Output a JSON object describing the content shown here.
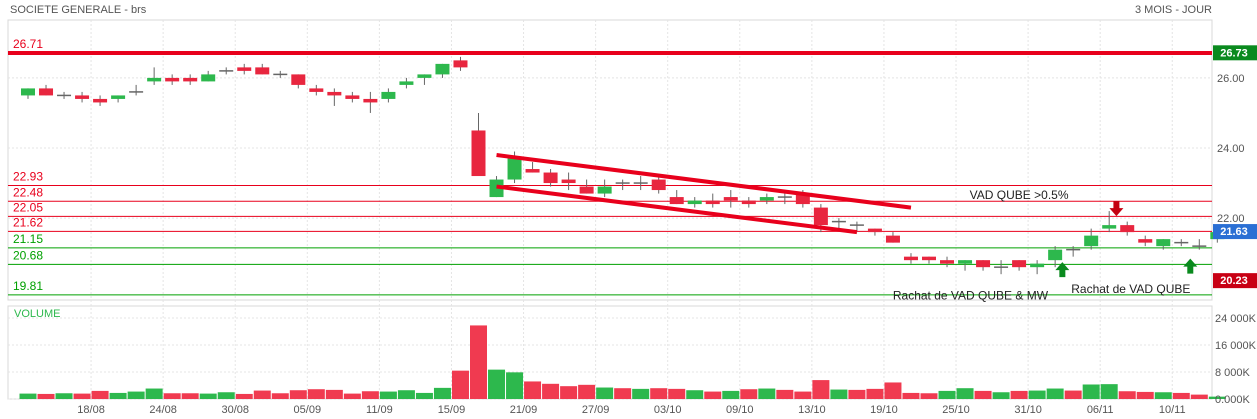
{
  "header": {
    "title": "SOCIETE GENERALE - brs",
    "period": "3 MOIS - JOUR"
  },
  "colors": {
    "up": "#2db84d",
    "down": "#e8263f",
    "resistance": "#e8001c",
    "support": "#00a000",
    "grid": "#e4e4e4",
    "text": "#555555"
  },
  "chart_data": [
    {
      "type": "candlestick",
      "y_ticks": [
        "26.00",
        "24.00",
        "22.00"
      ],
      "ylim": [
        19.6,
        26.9
      ],
      "x_labels": [
        {
          "i": 3,
          "label": "18/08"
        },
        {
          "i": 7,
          "label": "24/08"
        },
        {
          "i": 11,
          "label": "30/08"
        },
        {
          "i": 15,
          "label": "05/09"
        },
        {
          "i": 19,
          "label": "11/09"
        },
        {
          "i": 23,
          "label": "15/09"
        },
        {
          "i": 27,
          "label": "21/09"
        },
        {
          "i": 31,
          "label": "27/09"
        },
        {
          "i": 35,
          "label": "03/10"
        },
        {
          "i": 39,
          "label": "09/10"
        },
        {
          "i": 43,
          "label": "13/10"
        },
        {
          "i": 47,
          "label": "19/10"
        },
        {
          "i": 51,
          "label": "25/10"
        },
        {
          "i": 55,
          "label": "31/10"
        },
        {
          "i": 59,
          "label": "06/11"
        },
        {
          "i": 63,
          "label": "10/11"
        }
      ],
      "candles": [
        [
          25.5,
          25.7,
          25.4,
          25.7
        ],
        [
          25.7,
          25.8,
          25.5,
          25.5
        ],
        [
          25.5,
          25.6,
          25.4,
          25.5
        ],
        [
          25.5,
          25.6,
          25.3,
          25.4
        ],
        [
          25.4,
          25.5,
          25.2,
          25.3
        ],
        [
          25.4,
          25.5,
          25.3,
          25.5
        ],
        [
          25.6,
          25.8,
          25.5,
          25.6
        ],
        [
          25.9,
          26.3,
          25.8,
          26.0
        ],
        [
          26.0,
          26.1,
          25.8,
          25.9
        ],
        [
          26.0,
          26.1,
          25.8,
          25.9
        ],
        [
          25.9,
          26.2,
          25.9,
          26.1
        ],
        [
          26.2,
          26.3,
          26.1,
          26.2
        ],
        [
          26.3,
          26.4,
          26.1,
          26.2
        ],
        [
          26.3,
          26.4,
          26.1,
          26.1
        ],
        [
          26.1,
          26.2,
          26.0,
          26.1
        ],
        [
          26.1,
          26.1,
          25.7,
          25.8
        ],
        [
          25.7,
          25.8,
          25.5,
          25.6
        ],
        [
          25.6,
          25.7,
          25.2,
          25.5
        ],
        [
          25.5,
          25.6,
          25.3,
          25.4
        ],
        [
          25.4,
          25.6,
          25.0,
          25.3
        ],
        [
          25.4,
          25.7,
          25.3,
          25.6
        ],
        [
          25.8,
          26.0,
          25.7,
          25.9
        ],
        [
          26.0,
          26.1,
          25.8,
          26.1
        ],
        [
          26.1,
          26.4,
          26.0,
          26.4
        ],
        [
          26.5,
          26.6,
          26.2,
          26.3
        ],
        [
          24.5,
          25.0,
          23.2,
          23.2
        ],
        [
          22.6,
          23.2,
          22.6,
          23.1
        ],
        [
          23.1,
          23.9,
          23.0,
          23.7
        ],
        [
          23.4,
          23.6,
          23.3,
          23.3
        ],
        [
          23.3,
          23.4,
          22.9,
          23.0
        ],
        [
          23.1,
          23.3,
          22.8,
          23.0
        ],
        [
          22.9,
          23.1,
          22.7,
          22.7
        ],
        [
          22.7,
          23.1,
          22.6,
          22.9
        ],
        [
          23.0,
          23.1,
          22.8,
          23.0
        ],
        [
          23.0,
          23.2,
          22.8,
          23.0
        ],
        [
          23.1,
          23.2,
          22.7,
          22.8
        ],
        [
          22.6,
          22.8,
          22.4,
          22.4
        ],
        [
          22.4,
          22.6,
          22.3,
          22.5
        ],
        [
          22.5,
          22.7,
          22.3,
          22.4
        ],
        [
          22.6,
          22.8,
          22.3,
          22.5
        ],
        [
          22.5,
          22.6,
          22.3,
          22.4
        ],
        [
          22.5,
          22.7,
          22.4,
          22.6
        ],
        [
          22.6,
          22.8,
          22.4,
          22.6
        ],
        [
          22.7,
          22.8,
          22.3,
          22.4
        ],
        [
          22.3,
          22.4,
          21.6,
          21.8
        ],
        [
          21.9,
          22.0,
          21.7,
          21.9
        ],
        [
          21.8,
          21.9,
          21.6,
          21.8
        ],
        [
          21.7,
          21.7,
          21.5,
          21.6
        ],
        [
          21.5,
          21.6,
          21.3,
          21.3
        ],
        [
          20.9,
          21.0,
          20.7,
          20.8
        ],
        [
          20.9,
          20.9,
          20.7,
          20.8
        ],
        [
          20.8,
          20.9,
          20.6,
          20.7
        ],
        [
          20.7,
          20.8,
          20.5,
          20.8
        ],
        [
          20.8,
          20.8,
          20.5,
          20.6
        ],
        [
          20.6,
          20.8,
          20.4,
          20.6
        ],
        [
          20.8,
          20.8,
          20.5,
          20.6
        ],
        [
          20.6,
          20.8,
          20.4,
          20.7
        ],
        [
          20.8,
          21.2,
          20.6,
          21.1
        ],
        [
          21.1,
          21.2,
          20.9,
          21.1
        ],
        [
          21.2,
          21.7,
          21.1,
          21.5
        ],
        [
          21.7,
          22.2,
          21.6,
          21.8
        ],
        [
          21.8,
          21.9,
          21.5,
          21.6
        ],
        [
          21.4,
          21.5,
          21.2,
          21.3
        ],
        [
          21.2,
          21.4,
          21.1,
          21.4
        ],
        [
          21.3,
          21.4,
          21.2,
          21.3
        ],
        [
          21.2,
          21.4,
          21.1,
          21.2
        ],
        [
          21.4,
          21.7,
          21.3,
          21.6
        ]
      ],
      "volume_ticks": [
        "24 000K",
        "16 000K",
        "8 000K",
        "0.000K"
      ],
      "volume_max": 24000,
      "volumes": [
        1600,
        1500,
        1700,
        1600,
        2400,
        1800,
        2200,
        3100,
        1700,
        1700,
        1600,
        2000,
        1500,
        2500,
        1700,
        2600,
        2900,
        2700,
        1600,
        2300,
        2200,
        2600,
        1800,
        3300,
        8400,
        21800,
        8700,
        7900,
        5200,
        4500,
        3800,
        4200,
        3400,
        3200,
        3000,
        3200,
        3000,
        2600,
        2200,
        2400,
        2900,
        3100,
        2700,
        2200,
        5600,
        2800,
        2700,
        3000,
        4900,
        1800,
        1700,
        2400,
        3200,
        2400,
        2000,
        2400,
        2500,
        3100,
        2500,
        4300,
        4400,
        2300,
        2100,
        2000,
        1800,
        1300,
        700
      ],
      "volume_up": [
        true,
        false,
        true,
        false,
        false,
        true,
        true,
        true,
        false,
        false,
        true,
        true,
        false,
        false,
        false,
        false,
        false,
        false,
        false,
        false,
        true,
        true,
        true,
        true,
        false,
        false,
        true,
        true,
        false,
        false,
        false,
        false,
        true,
        false,
        true,
        false,
        false,
        true,
        false,
        true,
        false,
        true,
        false,
        false,
        false,
        true,
        false,
        false,
        false,
        false,
        false,
        true,
        true,
        false,
        true,
        false,
        true,
        true,
        false,
        true,
        true,
        false,
        false,
        true,
        false,
        false,
        true
      ],
      "series": [
        {
          "name": "VOLUME"
        }
      ]
    }
  ],
  "levels": [
    {
      "value": 26.71,
      "label": "26.71",
      "kind": "resistance",
      "thick": true
    },
    {
      "value": 22.93,
      "label": "22.93",
      "kind": "resistance",
      "thick": false
    },
    {
      "value": 22.48,
      "label": "22.48",
      "kind": "resistance",
      "thick": false
    },
    {
      "value": 22.05,
      "label": "22.05",
      "kind": "resistance",
      "thick": false
    },
    {
      "value": 21.62,
      "label": "21.62",
      "kind": "resistance",
      "thick": false
    },
    {
      "value": 21.15,
      "label": "21.15",
      "kind": "support",
      "thick": false
    },
    {
      "value": 20.68,
      "label": "20.68",
      "kind": "support",
      "thick": false
    },
    {
      "value": 19.81,
      "label": "19.81",
      "kind": "support",
      "thick": false
    }
  ],
  "channel": {
    "upper": [
      {
        "i": 26,
        "v": 23.8
      },
      {
        "i": 49,
        "v": 22.3
      }
    ],
    "lower": [
      {
        "i": 26,
        "v": 22.9
      },
      {
        "i": 46,
        "v": 21.6
      }
    ]
  },
  "price_badges": [
    {
      "value": 26.73,
      "label": "26.73",
      "color": "#0a8a1e"
    },
    {
      "value": 21.63,
      "label": "21.63",
      "color": "#2a6fd4"
    },
    {
      "value": 20.23,
      "label": "20.23",
      "color": "#c80014"
    }
  ],
  "annotations": [
    {
      "text": "VAD QUBE >0.5%",
      "i": 55,
      "v": 22.55
    },
    {
      "text": "Rachat de VAD QUBE & MW",
      "i": 52.3,
      "v": 19.68
    },
    {
      "text": "Rachat de VAD QUBE",
      "i": 61.2,
      "v": 19.87
    }
  ],
  "arrows": [
    {
      "dir": "down",
      "i": 60.4,
      "v": 22.2,
      "color": "#c40010"
    },
    {
      "dir": "up",
      "i": 57.4,
      "v": 20.6,
      "color": "#0a8a1e"
    },
    {
      "dir": "up",
      "i": 64.5,
      "v": 20.7,
      "color": "#0a8a1e"
    }
  ]
}
